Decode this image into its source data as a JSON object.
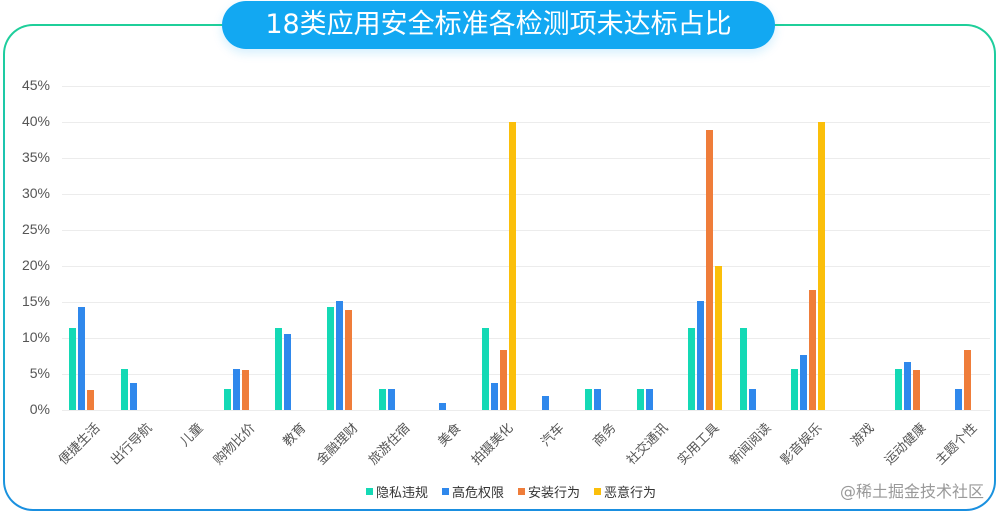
{
  "title": "18类应用安全标准各检测项未达标占比",
  "watermark": "@稀土掘金技术社区",
  "colors": {
    "frame_top": "#1fcf9a",
    "frame_bottom": "#1a8fe0",
    "title_bg": "#12a8f2",
    "series": [
      "#14d9b5",
      "#2f88ec",
      "#ef7d3a",
      "#fbbf0a"
    ]
  },
  "legend": [
    {
      "label": "隐私违规",
      "color": "#14d9b5"
    },
    {
      "label": "高危权限",
      "color": "#2f88ec"
    },
    {
      "label": "安装行为",
      "color": "#ef7d3a"
    },
    {
      "label": "恶意行为",
      "color": "#fbbf0a"
    }
  ],
  "chart_data": {
    "type": "bar",
    "title": "18类应用安全标准各检测项未达标占比",
    "xlabel": "",
    "ylabel": "",
    "ylim": [
      0,
      45
    ],
    "yticks": [
      "0%",
      "5%",
      "10%",
      "15%",
      "20%",
      "25%",
      "30%",
      "35%",
      "40%",
      "45%"
    ],
    "grid": true,
    "legend_position": "bottom",
    "categories": [
      "便捷生活",
      "出行导航",
      "儿童",
      "购物比价",
      "教育",
      "金融理财",
      "旅游住宿",
      "美食",
      "拍摄美化",
      "汽车",
      "商务",
      "社交通讯",
      "实用工具",
      "新闻阅读",
      "影音娱乐",
      "游戏",
      "运动健康",
      "主题个性"
    ],
    "series": [
      {
        "name": "隐私违规",
        "values": [
          11.4,
          5.7,
          0,
          2.9,
          11.4,
          14.3,
          2.9,
          0,
          11.4,
          0,
          2.9,
          2.9,
          11.4,
          11.4,
          5.7,
          0,
          5.7,
          0
        ]
      },
      {
        "name": "高危权限",
        "values": [
          14.3,
          3.8,
          0,
          5.7,
          10.5,
          15.2,
          2.9,
          1.0,
          3.8,
          1.9,
          2.9,
          2.9,
          15.2,
          2.9,
          7.6,
          0,
          6.7,
          2.9
        ]
      },
      {
        "name": "安装行为",
        "values": [
          2.8,
          0,
          0,
          5.6,
          0,
          13.9,
          0,
          0,
          8.3,
          0,
          0,
          0,
          38.9,
          0,
          16.7,
          0,
          5.6,
          8.3
        ]
      },
      {
        "name": "恶意行为",
        "values": [
          0,
          0,
          0,
          0,
          0,
          0,
          0,
          0,
          40.0,
          0,
          0,
          0,
          20.0,
          0,
          40.0,
          0,
          0,
          0
        ]
      }
    ]
  }
}
